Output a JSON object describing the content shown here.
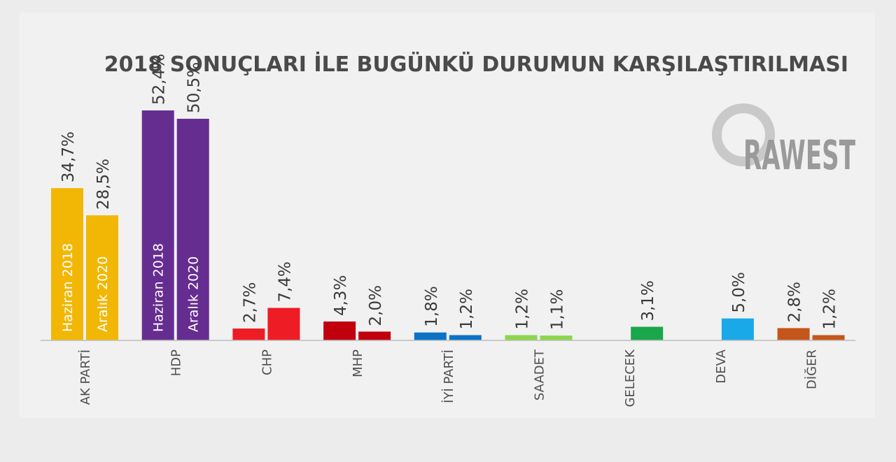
{
  "chart_data": {
    "type": "bar",
    "title": "2018 SONUÇLARI İLE BUGÜNKÜ DURUMUN KARŞILAŞTIRILMASI",
    "categories": [
      "AK PARTİ",
      "HDP",
      "CHP",
      "MHP",
      "İYİ PARTİ",
      "SAADET",
      "GELECEK",
      "DEVA",
      "DİĞER"
    ],
    "series": [
      {
        "name": "Haziran 2018",
        "values": [
          34.7,
          52.4,
          2.7,
          4.3,
          1.8,
          1.2,
          null,
          null,
          2.8
        ]
      },
      {
        "name": "Aralık 2020",
        "values": [
          28.5,
          50.5,
          7.4,
          2.0,
          1.2,
          1.1,
          3.1,
          5.0,
          1.2
        ]
      }
    ],
    "value_labels": [
      [
        "34,7%",
        "28,5%"
      ],
      [
        "52,4%",
        "50,5%"
      ],
      [
        "2,7%",
        "7,4%"
      ],
      [
        "4,3%",
        "2,0%"
      ],
      [
        "1,8%",
        "1,2%"
      ],
      [
        "1,2%",
        "1,1%"
      ],
      [
        null,
        "3,1%"
      ],
      [
        null,
        "5,0%"
      ],
      [
        "2,8%",
        "1,2%"
      ]
    ],
    "colors": [
      [
        "#f2b705",
        "#f2b705"
      ],
      [
        "#662d91",
        "#662d91"
      ],
      [
        "#ee1c25",
        "#ee1c25"
      ],
      [
        "#c1000d",
        "#c1000d"
      ],
      [
        "#0b72c6",
        "#0b72c6"
      ],
      [
        "#8cd64c",
        "#8cd64c"
      ],
      [
        "#1aa64a",
        "#1aa64a"
      ],
      [
        "#19a9e8",
        "#19a9e8"
      ],
      [
        "#c4561a",
        "#c4561a"
      ]
    ],
    "in_bar_labels_on": [
      "AK PARTİ",
      "HDP"
    ],
    "ylim": [
      0,
      52.4
    ],
    "grid": false,
    "legend": "none"
  },
  "logo": {
    "text": "RAWEST"
  }
}
